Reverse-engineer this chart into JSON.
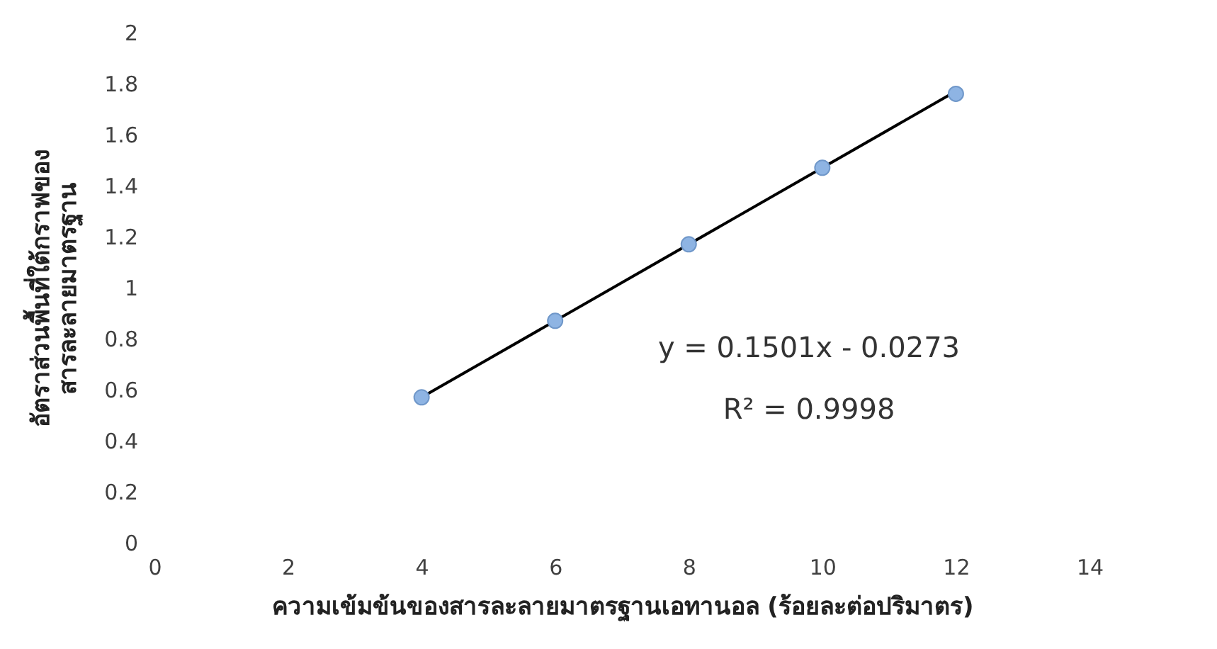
{
  "chart_data": {
    "type": "scatter",
    "xlabel": "ความเข้มข้นของสารละลายมาตรฐานเอทานอล (ร้อยละต่อปริมาตร)",
    "ylabel": "อัตราส่วนพื้นที่ใต้กราฟของ\nสารละลายมาตรฐาน",
    "x": [
      4,
      6,
      8,
      10,
      12
    ],
    "series": [
      {
        "type": "scatter",
        "color": "#8eb4e3",
        "values": [
          0.57,
          0.87,
          1.17,
          1.47,
          1.76
        ]
      },
      {
        "type": "line",
        "color": "#000000",
        "marker": "none",
        "x": [
          4,
          12
        ],
        "values": [
          0.57,
          1.77
        ]
      }
    ],
    "annotations": [
      "y = 0.1501x - 0.0273",
      "R² = 0.9998"
    ],
    "xlim": [
      0,
      14
    ],
    "xticks": [
      0,
      2,
      4,
      6,
      8,
      10,
      12,
      14
    ],
    "ylim": [
      0,
      2
    ],
    "yticks": [
      0,
      0.2,
      0.4,
      0.6,
      0.8,
      1,
      1.2,
      1.4,
      1.6,
      1.8,
      2
    ],
    "grid": false,
    "legend": false,
    "marker": "circle",
    "line_style": "solid"
  }
}
